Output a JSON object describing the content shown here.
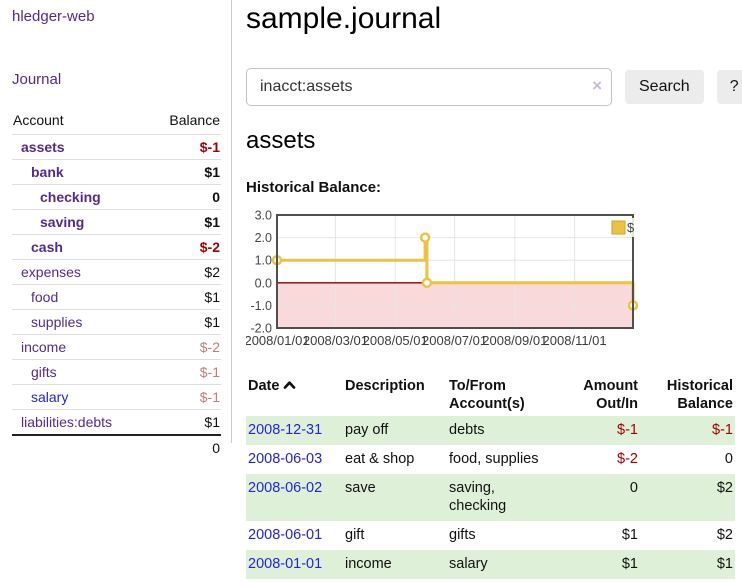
{
  "colors": {
    "link_purple": "#552a90",
    "link_blue": "#2323dd",
    "negative": "#a40000",
    "negative_muted": "#bc7e7e",
    "row_stripe_green": "#dff0d8",
    "button_gray": "#ececec",
    "series_yellow": "#edc240"
  },
  "sidebar": {
    "app_title": "hledger-web",
    "journal_link": "Journal",
    "accounts": {
      "header_account": "Account",
      "header_balance": "Balance",
      "rows": [
        {
          "name": "assets",
          "level": 1,
          "bold": true,
          "link": "visited",
          "balance": "$-1",
          "bal_class": "neg"
        },
        {
          "name": "bank",
          "level": 2,
          "bold": true,
          "link": "visited",
          "balance": "$1",
          "bal_class": "pos"
        },
        {
          "name": "checking",
          "level": 3,
          "bold": true,
          "link": "visited",
          "balance": "0",
          "bal_class": "pos"
        },
        {
          "name": "saving",
          "level": 3,
          "bold": true,
          "link": "visited",
          "balance": "$1",
          "bal_class": "pos"
        },
        {
          "name": "cash",
          "level": 2,
          "bold": true,
          "link": "visited",
          "balance": "$-2",
          "bal_class": "neg"
        },
        {
          "name": "expenses",
          "level": 1,
          "bold": false,
          "link": "visited",
          "balance": "$2",
          "bal_class": "pos"
        },
        {
          "name": "food",
          "level": 2,
          "bold": false,
          "link": "visited",
          "balance": "$1",
          "bal_class": "pos"
        },
        {
          "name": "supplies",
          "level": 2,
          "bold": false,
          "link": "visited",
          "balance": "$1",
          "bal_class": "pos"
        },
        {
          "name": "income",
          "level": 1,
          "bold": false,
          "link": "visited",
          "balance": "$-2",
          "bal_class": "neg-muted"
        },
        {
          "name": "gifts",
          "level": 2,
          "bold": false,
          "link": "visited",
          "balance": "$-1",
          "bal_class": "neg-muted"
        },
        {
          "name": "salary",
          "level": 2,
          "bold": false,
          "link": "unvisited",
          "balance": "$-1",
          "bal_class": "neg-muted"
        },
        {
          "name": "liabilities:debts",
          "level": 1,
          "bold": false,
          "link": "visited",
          "balance": "$1",
          "bal_class": "pos"
        }
      ],
      "total": "0"
    }
  },
  "main": {
    "title": "sample.journal",
    "search": {
      "value": "inacct:assets",
      "clear_icon": "×",
      "search_button": "Search",
      "help_button": "?"
    },
    "account_heading": "assets",
    "chart_label": "Historical Balance:",
    "register": {
      "headers": {
        "date": "Date",
        "description": "Description",
        "accounts": "To/From Account(s)",
        "amount": "Amount Out/In",
        "balance": "Historical Balance"
      },
      "rows": [
        {
          "date": "2008-12-31",
          "description": "pay off",
          "accounts": "debts",
          "amount": "$-1",
          "amount_neg": true,
          "balance": "$-1",
          "balance_neg": true
        },
        {
          "date": "2008-06-03",
          "description": "eat & shop",
          "accounts": "food, supplies",
          "amount": "$-2",
          "amount_neg": true,
          "balance": "0",
          "balance_neg": false
        },
        {
          "date": "2008-06-02",
          "description": "save",
          "accounts": "saving, checking",
          "amount": "0",
          "amount_neg": false,
          "balance": "$2",
          "balance_neg": false
        },
        {
          "date": "2008-06-01",
          "description": "gift",
          "accounts": "gifts",
          "amount": "$1",
          "amount_neg": false,
          "balance": "$2",
          "balance_neg": false
        },
        {
          "date": "2008-01-01",
          "description": "income",
          "accounts": "salary",
          "amount": "$1",
          "amount_neg": false,
          "balance": "$1",
          "balance_neg": false
        }
      ]
    }
  },
  "chart_data": {
    "type": "line",
    "title": "Historical Balance",
    "step": true,
    "legend": [
      {
        "label": "$",
        "color": "#edc240"
      }
    ],
    "legend_position": "top-right",
    "grid": true,
    "ylim": [
      -2,
      3
    ],
    "y_tick_step": 1,
    "x_ticks": [
      {
        "t": 0.0,
        "label": "2008/01/01"
      },
      {
        "t": 0.164,
        "label": "2008/03/01"
      },
      {
        "t": 0.332,
        "label": "2008/05/01"
      },
      {
        "t": 0.499,
        "label": "2008/07/01"
      },
      {
        "t": 0.668,
        "label": "2008/09/01"
      },
      {
        "t": 0.836,
        "label": "2008/11/01"
      }
    ],
    "points": [
      {
        "x": "2008-01-01",
        "t": 0.0,
        "y": 1
      },
      {
        "x": "2008-06-01",
        "t": 0.416,
        "y": 2
      },
      {
        "x": "2008-06-03",
        "t": 0.421,
        "y": 0
      },
      {
        "x": "2008-12-31",
        "t": 1.0,
        "y": -1
      }
    ],
    "negative_region": true,
    "colors": {
      "series": "#edc240",
      "marker_fill": "#ffffff",
      "negative_fill": "#f9d9d9",
      "zero_line": "#8b0000",
      "grid_line": "#e6e6e6",
      "border": "#4f4f4f",
      "tick_text": "#474747",
      "legend_square_border": "#c9a42f"
    }
  }
}
